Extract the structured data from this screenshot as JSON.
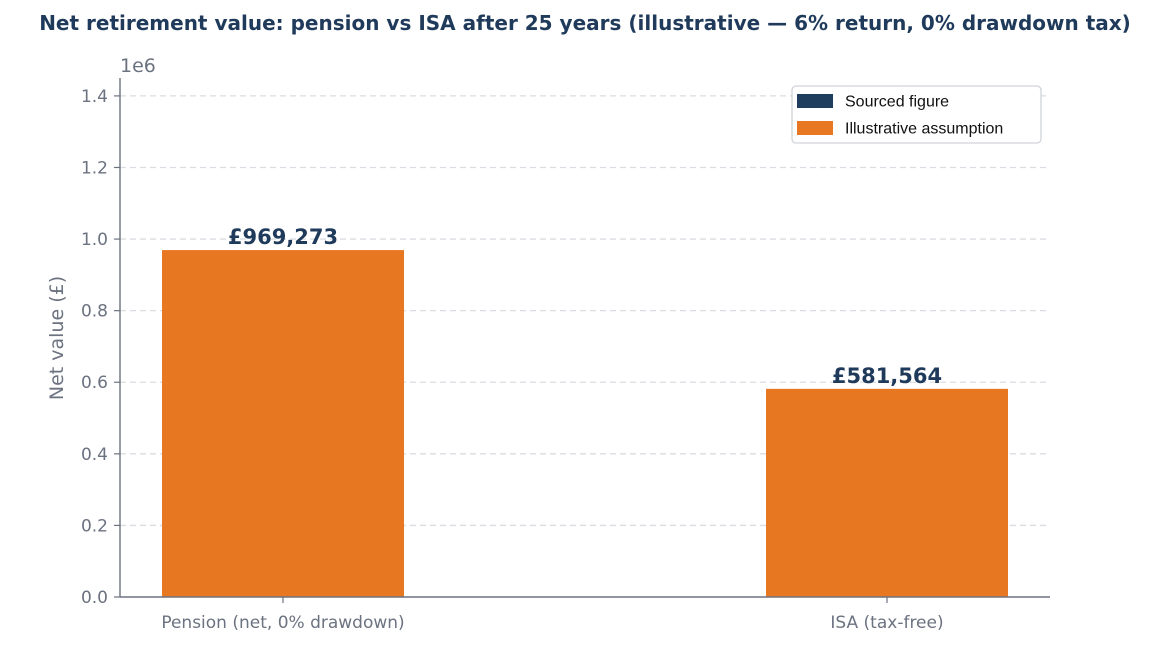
{
  "chart_data": {
    "type": "bar",
    "title": "Net retirement value: pension vs ISA after 25 years (illustrative — 6% return, 0% drawdown tax)",
    "xlabel": "",
    "ylabel": "Net value (£)",
    "y_offset_label": "1e6",
    "ylim": [
      0,
      1450000
    ],
    "yticks": [
      0,
      200000,
      400000,
      600000,
      800000,
      1000000,
      1200000,
      1400000
    ],
    "ytick_labels": [
      "0.0",
      "0.2",
      "0.4",
      "0.6",
      "0.8",
      "1.0",
      "1.2",
      "1.4"
    ],
    "grid": "y-dashed",
    "legend_position": "top-right",
    "categories": [
      "Pension (net, 0% drawdown)",
      "ISA (tax-free)"
    ],
    "values": [
      969273,
      581564
    ],
    "value_labels": [
      "£969,273",
      "£581,564"
    ],
    "bar_kind": [
      "illustrative",
      "illustrative"
    ],
    "legend": [
      {
        "key": "sourced",
        "label": "Sourced figure",
        "color": "#1f3d5c"
      },
      {
        "key": "illustrative",
        "label": "Illustrative assumption",
        "color": "#e87722"
      }
    ],
    "colors": {
      "sourced": "#1f3d5c",
      "illustrative": "#e87722",
      "axis": "#6b7280",
      "grid": "#d9dde2",
      "title": "#1f3a5a"
    }
  }
}
